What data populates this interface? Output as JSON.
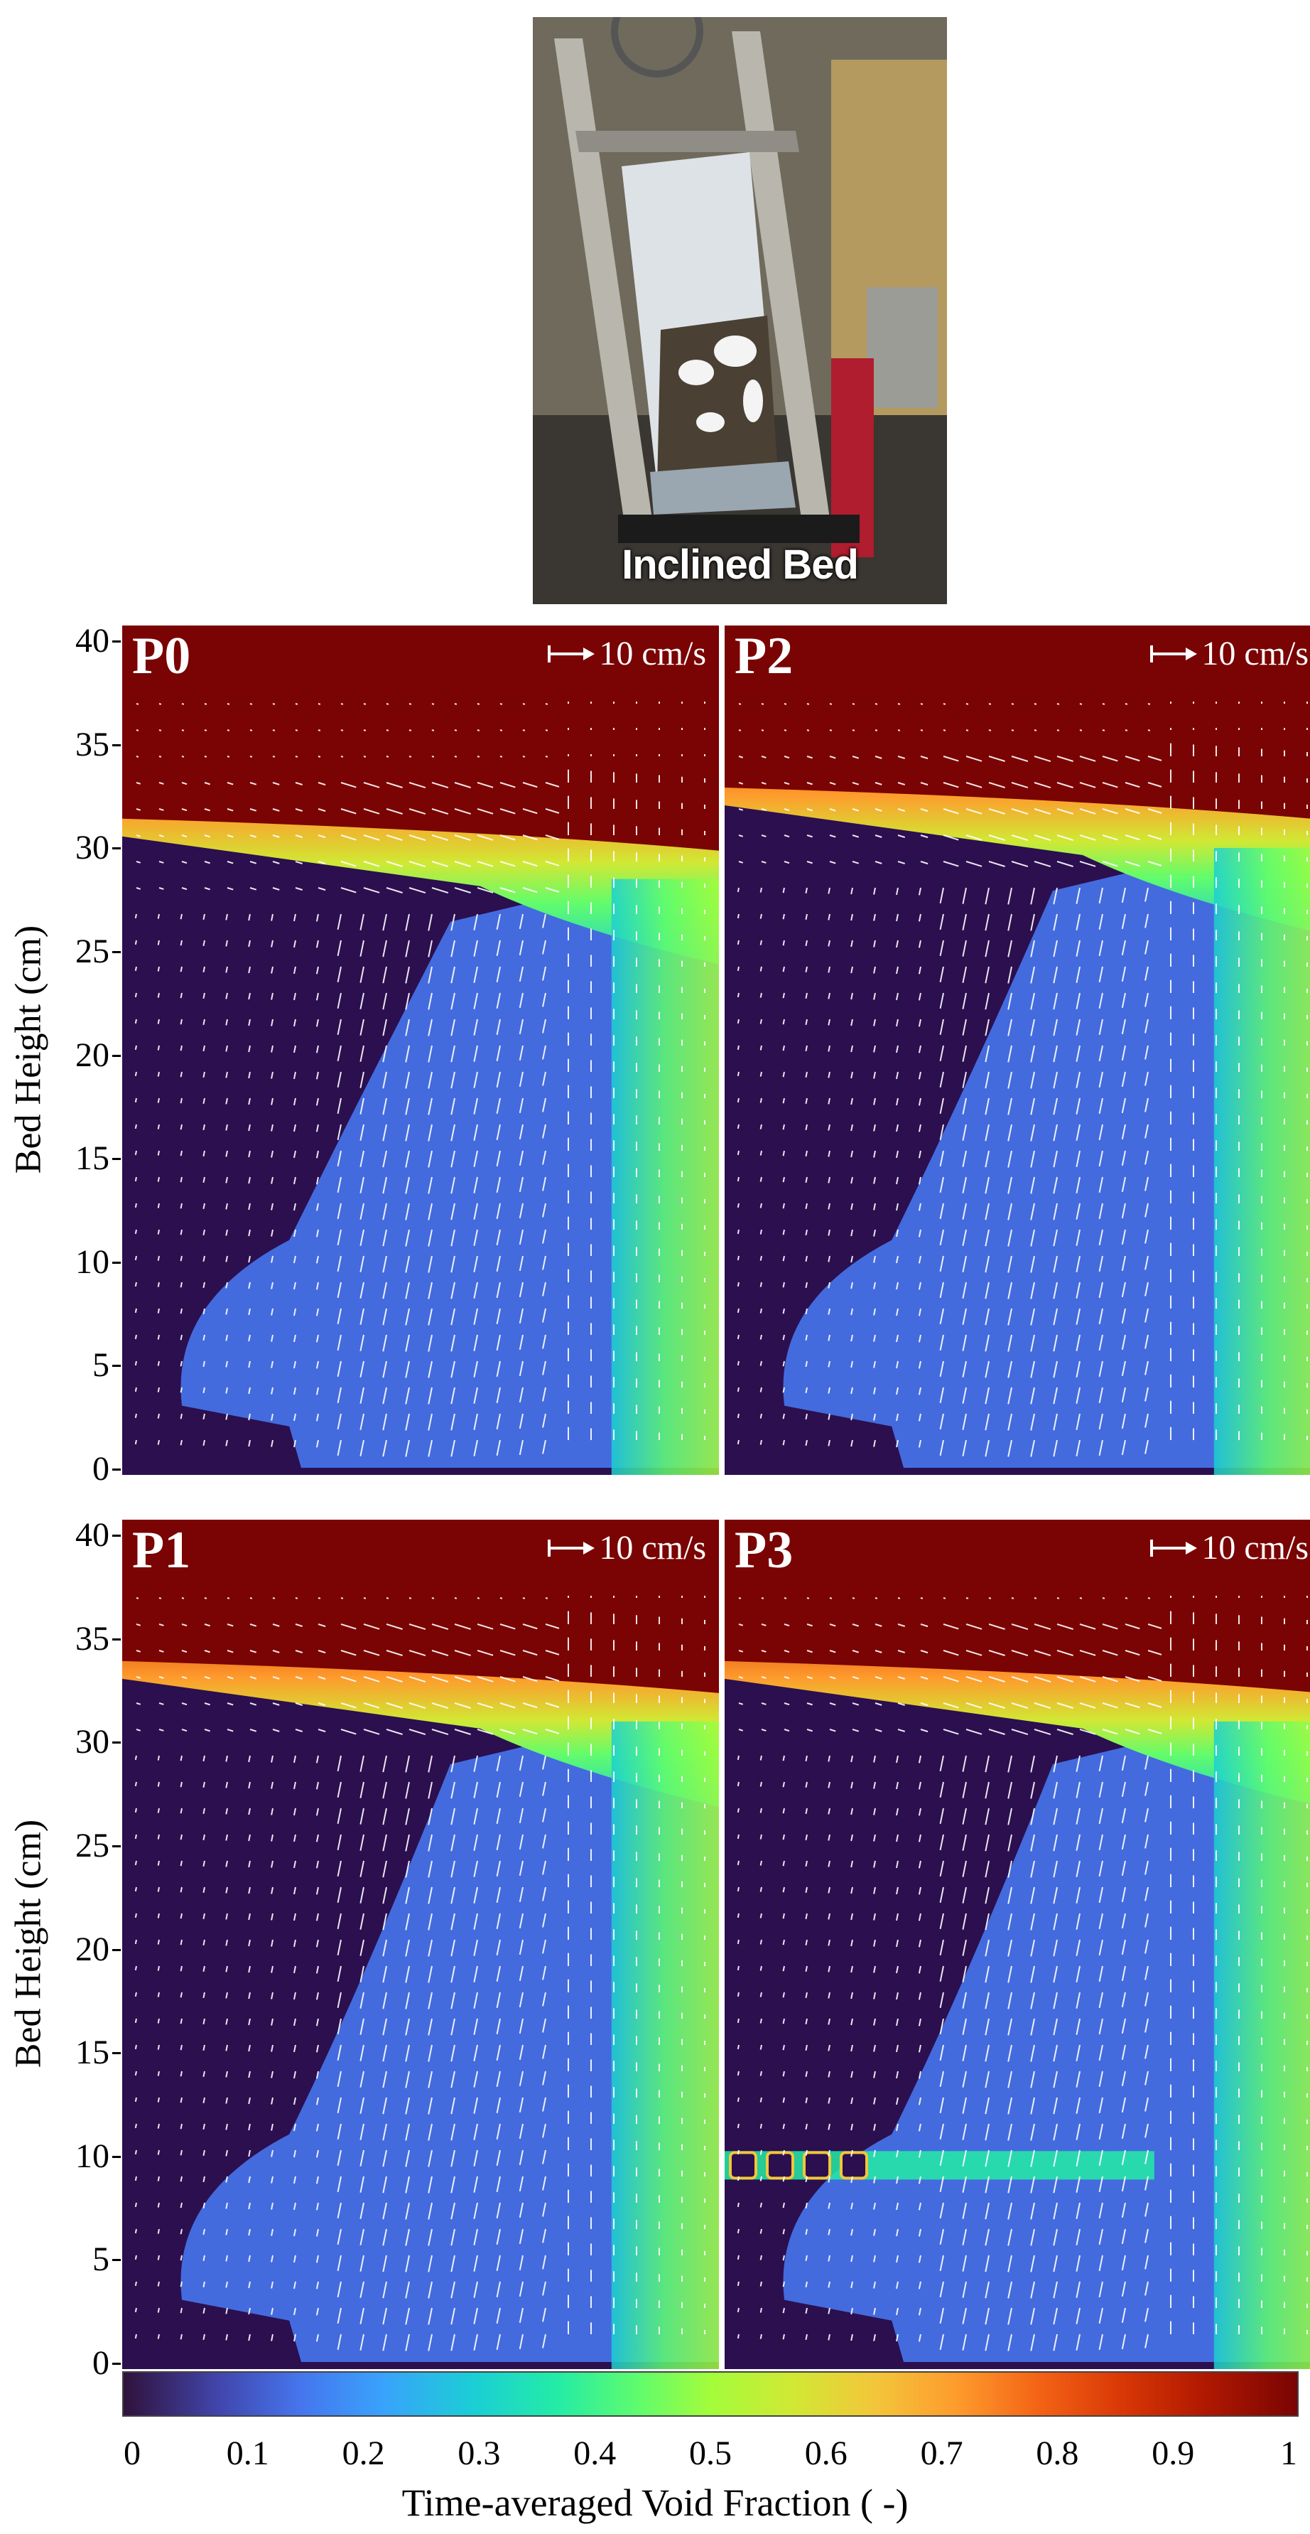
{
  "photo": {
    "caption": "Inclined Bed"
  },
  "panels": [
    {
      "id": "P0",
      "label": "P0",
      "reference_vector": "10 cm/s",
      "bed_surface_height_cm": 30.5,
      "insert": "none"
    },
    {
      "id": "P2",
      "label": "P2",
      "reference_vector": "10 cm/s",
      "bed_surface_height_cm": 32.0,
      "insert": "none"
    },
    {
      "id": "P1",
      "label": "P1",
      "reference_vector": "10 cm/s",
      "bed_surface_height_cm": 33.0,
      "insert": "none"
    },
    {
      "id": "P3",
      "label": "P3",
      "reference_vector": "10 cm/s",
      "bed_surface_height_cm": 33.0,
      "insert": "horizontal tube row at 9.5 cm"
    }
  ],
  "y_axis": {
    "label": "Bed Height (cm)",
    "ticks": [
      "0",
      "5",
      "10",
      "15",
      "20",
      "25",
      "30",
      "35",
      "40"
    ],
    "range": [
      0,
      40
    ]
  },
  "colorbar": {
    "label": "Time-averaged Void Fraction ( -)",
    "ticks": [
      "0",
      "0.1",
      "0.2",
      "0.3",
      "0.4",
      "0.5",
      "0.6",
      "0.7",
      "0.8",
      "0.9",
      "1"
    ],
    "range": [
      0,
      1
    ],
    "colormap": "turbo"
  },
  "colors": {
    "freeboard": "#7a0403",
    "dense_bed": "#2b0f4f",
    "bubble_core": "#4675ed",
    "vectors": "#ffffff"
  }
}
